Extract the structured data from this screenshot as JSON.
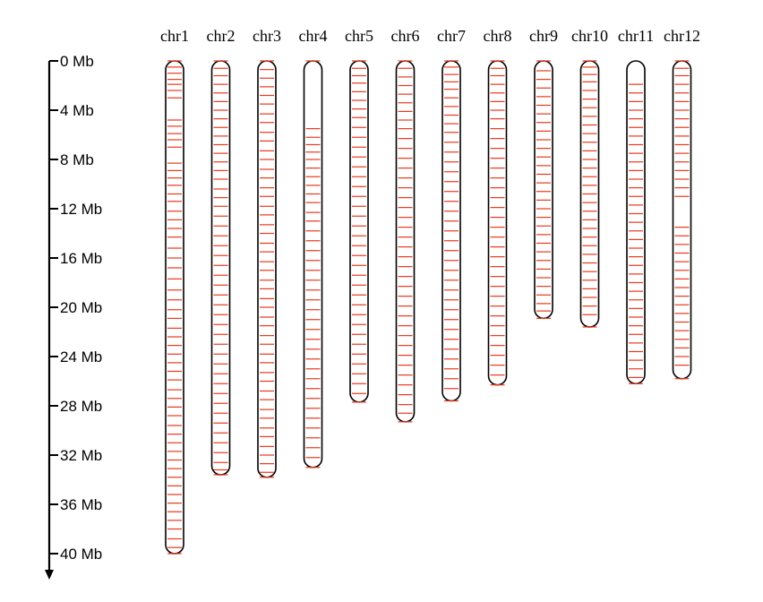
{
  "scale": {
    "unit": "Mb",
    "ticks": [
      {
        "value": 0,
        "label": "0 Mb"
      },
      {
        "value": 4,
        "label": "4 Mb"
      },
      {
        "value": 8,
        "label": "8 Mb"
      },
      {
        "value": 12,
        "label": "12 Mb"
      },
      {
        "value": 16,
        "label": "16 Mb"
      },
      {
        "value": 20,
        "label": "20 Mb"
      },
      {
        "value": 24,
        "label": "24 Mb"
      },
      {
        "value": 28,
        "label": "28 Mb"
      },
      {
        "value": 32,
        "label": "32 Mb"
      },
      {
        "value": 36,
        "label": "36 Mb"
      },
      {
        "value": 40,
        "label": "40 Mb"
      }
    ]
  },
  "colors": {
    "marker": "#e8391d",
    "outline": "#000000"
  },
  "chromosomes": [
    {
      "label": "chr1",
      "length_mb": 40.0,
      "markers": [
        0.0,
        0.5,
        1.0,
        1.5,
        1.9,
        2.4,
        3.0,
        4.8,
        5.3,
        5.9,
        6.4,
        7.0,
        8.3,
        8.9,
        9.5,
        10.1,
        10.8,
        11.4,
        12.2,
        12.9,
        13.6,
        14.3,
        15.2,
        16.0,
        16.8,
        17.7,
        18.6,
        19.4,
        20.2,
        20.9,
        21.7,
        22.4,
        23.1,
        23.8,
        24.5,
        25.2,
        25.9,
        26.7,
        27.4,
        28.1,
        28.8,
        29.6,
        30.3,
        31.0,
        31.7,
        32.4,
        33.1,
        33.8,
        34.5,
        35.2,
        35.9,
        36.6,
        37.3,
        38.0,
        38.8,
        39.5,
        40.0
      ]
    },
    {
      "label": "chr2",
      "length_mb": 33.6,
      "markers": [
        0.0,
        0.6,
        1.2,
        1.9,
        2.6,
        3.3,
        4.0,
        4.7,
        5.4,
        6.1,
        6.8,
        7.5,
        8.2,
        8.9,
        9.6,
        10.4,
        11.1,
        11.8,
        12.6,
        13.4,
        14.2,
        15.0,
        15.8,
        16.6,
        17.4,
        18.2,
        19.0,
        19.8,
        20.6,
        21.4,
        22.2,
        23.0,
        23.8,
        24.6,
        25.4,
        26.2,
        27.0,
        27.8,
        28.6,
        29.4,
        30.2,
        31.0,
        31.8,
        32.6,
        33.2,
        33.6
      ]
    },
    {
      "label": "chr3",
      "length_mb": 33.8,
      "markers": [
        0.0,
        0.7,
        1.4,
        2.1,
        2.8,
        3.5,
        4.3,
        5.0,
        5.8,
        6.5,
        7.3,
        8.0,
        8.8,
        9.5,
        10.3,
        11.0,
        11.8,
        12.5,
        13.3,
        14.0,
        14.8,
        15.5,
        16.3,
        17.0,
        17.8,
        18.5,
        19.3,
        20.0,
        20.8,
        21.5,
        22.3,
        23.0,
        23.8,
        24.5,
        25.3,
        26.0,
        26.8,
        27.5,
        28.3,
        29.0,
        29.8,
        30.5,
        31.3,
        32.0,
        32.7,
        33.4,
        33.8
      ]
    },
    {
      "label": "chr4",
      "length_mb": 33.0,
      "markers": [
        0.0,
        5.5,
        6.2,
        6.8,
        7.4,
        8.0,
        8.7,
        9.4,
        10.1,
        10.8,
        11.5,
        12.3,
        13.0,
        13.8,
        14.6,
        15.4,
        16.2,
        17.0,
        17.8,
        18.6,
        19.4,
        20.2,
        21.0,
        21.8,
        22.6,
        23.4,
        24.2,
        25.0,
        25.8,
        26.6,
        27.4,
        28.2,
        29.0,
        29.8,
        30.6,
        31.4,
        32.2,
        33.0
      ]
    },
    {
      "label": "chr5",
      "length_mb": 27.7,
      "markers": [
        0.0,
        0.6,
        1.2,
        1.8,
        2.5,
        3.2,
        3.9,
        4.6,
        5.4,
        6.2,
        7.0,
        7.8,
        8.6,
        9.4,
        10.2,
        11.0,
        11.8,
        12.6,
        13.4,
        14.2,
        15.0,
        15.8,
        16.6,
        17.4,
        18.2,
        19.0,
        19.8,
        20.6,
        21.4,
        22.2,
        23.0,
        23.8,
        24.6,
        25.4,
        26.2,
        27.0,
        27.7
      ]
    },
    {
      "label": "chr6",
      "length_mb": 29.3,
      "markers": [
        0.0,
        0.6,
        1.3,
        2.0,
        2.7,
        3.4,
        4.1,
        4.8,
        5.5,
        6.3,
        7.1,
        7.9,
        8.7,
        9.5,
        10.3,
        11.1,
        11.9,
        12.7,
        13.5,
        14.3,
        15.1,
        15.9,
        16.7,
        17.5,
        18.3,
        19.1,
        19.9,
        20.7,
        21.5,
        22.3,
        23.1,
        23.9,
        24.7,
        25.5,
        26.3,
        27.1,
        27.9,
        28.6,
        29.3
      ]
    },
    {
      "label": "chr7",
      "length_mb": 27.6,
      "markers": [
        0.0,
        0.5,
        1.1,
        1.7,
        2.3,
        3.0,
        3.7,
        4.4,
        5.1,
        5.8,
        6.6,
        7.4,
        8.2,
        9.0,
        9.8,
        10.6,
        11.4,
        12.2,
        13.0,
        13.8,
        14.6,
        15.4,
        16.2,
        17.0,
        17.8,
        18.6,
        19.4,
        20.2,
        21.0,
        21.8,
        22.6,
        23.4,
        24.2,
        25.0,
        25.8,
        26.6,
        27.6
      ]
    },
    {
      "label": "chr8",
      "length_mb": 26.3,
      "markers": [
        0.0,
        0.6,
        1.2,
        1.9,
        2.6,
        3.3,
        4.0,
        4.7,
        5.5,
        6.3,
        7.1,
        7.9,
        8.7,
        9.5,
        10.3,
        11.1,
        11.9,
        12.7,
        13.5,
        14.3,
        15.1,
        15.9,
        16.7,
        17.5,
        18.3,
        19.1,
        19.9,
        20.7,
        21.5,
        22.3,
        23.1,
        23.9,
        24.7,
        25.5,
        26.3
      ]
    },
    {
      "label": "chr9",
      "length_mb": 20.9,
      "markers": [
        0.0,
        0.8,
        1.5,
        2.2,
        2.9,
        3.6,
        4.3,
        5.0,
        5.7,
        6.4,
        7.1,
        7.8,
        8.5,
        9.2,
        9.9,
        10.6,
        11.3,
        12.0,
        12.7,
        13.4,
        14.1,
        14.8,
        15.5,
        16.2,
        16.9,
        17.6,
        18.3,
        19.0,
        19.7,
        20.3,
        20.9
      ]
    },
    {
      "label": "chr10",
      "length_mb": 21.6,
      "markers": [
        0.0,
        0.5,
        1.1,
        1.7,
        2.4,
        3.1,
        3.8,
        4.5,
        5.2,
        5.9,
        6.6,
        7.3,
        8.0,
        8.7,
        9.4,
        10.1,
        10.8,
        11.5,
        12.2,
        12.9,
        13.6,
        14.3,
        15.0,
        15.7,
        16.4,
        17.1,
        17.8,
        18.5,
        19.2,
        19.9,
        20.6,
        21.6
      ]
    },
    {
      "label": "chr11",
      "length_mb": 26.2,
      "markers": [
        1.9,
        2.6,
        3.3,
        4.0,
        4.7,
        5.4,
        6.1,
        6.8,
        7.5,
        8.2,
        8.9,
        9.6,
        10.3,
        11.0,
        11.7,
        12.4,
        13.1,
        13.8,
        14.5,
        15.2,
        15.9,
        16.6,
        17.3,
        18.0,
        18.7,
        19.4,
        20.1,
        20.8,
        21.5,
        22.2,
        22.9,
        23.6,
        24.3,
        25.0,
        25.7,
        26.2
      ]
    },
    {
      "label": "chr12",
      "length_mb": 25.8,
      "markers": [
        0.0,
        0.6,
        1.2,
        1.9,
        2.6,
        3.3,
        4.0,
        4.7,
        5.4,
        6.1,
        6.8,
        7.5,
        8.2,
        8.9,
        9.6,
        10.3,
        11.0,
        13.5,
        14.2,
        14.9,
        15.6,
        16.3,
        17.0,
        17.7,
        18.4,
        19.1,
        19.8,
        20.5,
        21.2,
        21.9,
        22.6,
        23.3,
        24.0,
        24.7,
        25.8
      ]
    }
  ]
}
